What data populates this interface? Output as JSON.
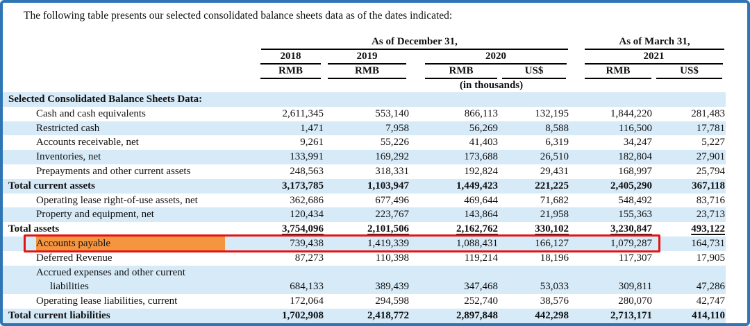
{
  "page": {
    "intro_text": "The following table presents our selected consolidated balance sheets data as of the dates indicated:"
  },
  "colors": {
    "frame_border": "#2E75B6",
    "row_stripe": "#D6EAF7",
    "highlight_box_border": "#E31313",
    "highlight_text_background": "#F6953F"
  },
  "table": {
    "group_headers": [
      {
        "label": "As of December 31,"
      },
      {
        "label": "As of March 31,"
      }
    ],
    "year_headers": [
      {
        "label": "2018"
      },
      {
        "label": "2019"
      },
      {
        "label": "2020"
      },
      {
        "label": "2021"
      }
    ],
    "currency_headers": [
      "RMB",
      "RMB",
      "RMB",
      "US$",
      "RMB",
      "US$"
    ],
    "units_note": "(in thousands)",
    "rows": [
      {
        "label": "Selected Consolidated Balance Sheets Data:",
        "indent": 0,
        "bold": true,
        "values": [
          "",
          "",
          "",
          "",
          "",
          ""
        ]
      },
      {
        "label": "Cash and cash equivalents",
        "indent": 1,
        "bold": false,
        "values": [
          "2,611,345",
          "553,140",
          "866,113",
          "132,195",
          "1,844,220",
          "281,483"
        ]
      },
      {
        "label": "Restricted cash",
        "indent": 1,
        "bold": false,
        "values": [
          "1,471",
          "7,958",
          "56,269",
          "8,588",
          "116,500",
          "17,781"
        ]
      },
      {
        "label": "Accounts receivable, net",
        "indent": 1,
        "bold": false,
        "values": [
          "9,261",
          "55,226",
          "41,403",
          "6,319",
          "34,247",
          "5,227"
        ]
      },
      {
        "label": "Inventories, net",
        "indent": 1,
        "bold": false,
        "values": [
          "133,991",
          "169,292",
          "173,688",
          "26,510",
          "182,804",
          "27,901"
        ]
      },
      {
        "label": "Prepayments and other current assets",
        "indent": 1,
        "bold": false,
        "values": [
          "248,563",
          "318,331",
          "192,824",
          "29,431",
          "168,997",
          "25,794"
        ]
      },
      {
        "label": "Total current assets",
        "indent": 0,
        "bold": true,
        "values": [
          "3,173,785",
          "1,103,947",
          "1,449,423",
          "221,225",
          "2,405,290",
          "367,118"
        ]
      },
      {
        "label": "Operating lease right-of-use assets, net",
        "indent": 1,
        "bold": false,
        "values": [
          "362,686",
          "677,496",
          "469,644",
          "71,682",
          "548,492",
          "83,716"
        ]
      },
      {
        "label": "Property and equipment, net",
        "indent": 1,
        "bold": false,
        "values": [
          "120,434",
          "223,767",
          "143,864",
          "21,958",
          "155,363",
          "23,713"
        ]
      },
      {
        "label": "Total assets",
        "indent": 0,
        "bold": true,
        "underline_values": true,
        "values": [
          "3,754,096",
          "2,101,506",
          "2,162,762",
          "330,102",
          "3,230,847",
          "493,122"
        ]
      },
      {
        "label": "Accounts payable",
        "indent": 1,
        "bold": false,
        "highlighted": true,
        "values": [
          "739,438",
          "1,419,339",
          "1,088,431",
          "166,127",
          "1,079,287",
          "164,731"
        ]
      },
      {
        "label": "Deferred Revenue",
        "indent": 1,
        "bold": false,
        "values": [
          "87,273",
          "110,398",
          "119,214",
          "18,196",
          "117,307",
          "17,905"
        ]
      },
      {
        "label": "Accrued expenses and other current liabilities",
        "label_line1": "Accrued expenses and other current",
        "label_line2": "liabilities",
        "two_line": true,
        "indent": 1,
        "bold": false,
        "values": [
          "684,133",
          "389,439",
          "347,468",
          "53,033",
          "309,811",
          "47,286"
        ]
      },
      {
        "label": "Operating lease liabilities, current",
        "indent": 1,
        "bold": false,
        "values": [
          "172,064",
          "294,598",
          "252,740",
          "38,576",
          "280,070",
          "42,747"
        ]
      },
      {
        "label": "Total current liabilities",
        "indent": 0,
        "bold": true,
        "values": [
          "1,702,908",
          "2,418,772",
          "2,897,848",
          "442,298",
          "2,713,171",
          "414,110"
        ]
      }
    ]
  }
}
